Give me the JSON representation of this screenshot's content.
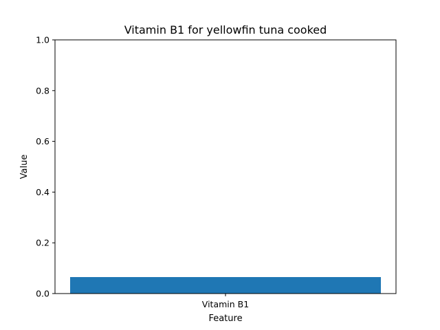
{
  "chart_data": {
    "type": "bar",
    "title": "Vitamin B1 for yellowfin tuna cooked",
    "xlabel": "Feature",
    "ylabel": "Value",
    "categories": [
      "Vitamin B1"
    ],
    "values": [
      0.065
    ],
    "ylim": [
      0,
      1.0
    ],
    "yticks": [
      "0.0",
      "0.2",
      "0.4",
      "0.6",
      "0.8",
      "1.0"
    ],
    "bar_color": "#1f77b4",
    "grid": false,
    "legend": "none"
  }
}
